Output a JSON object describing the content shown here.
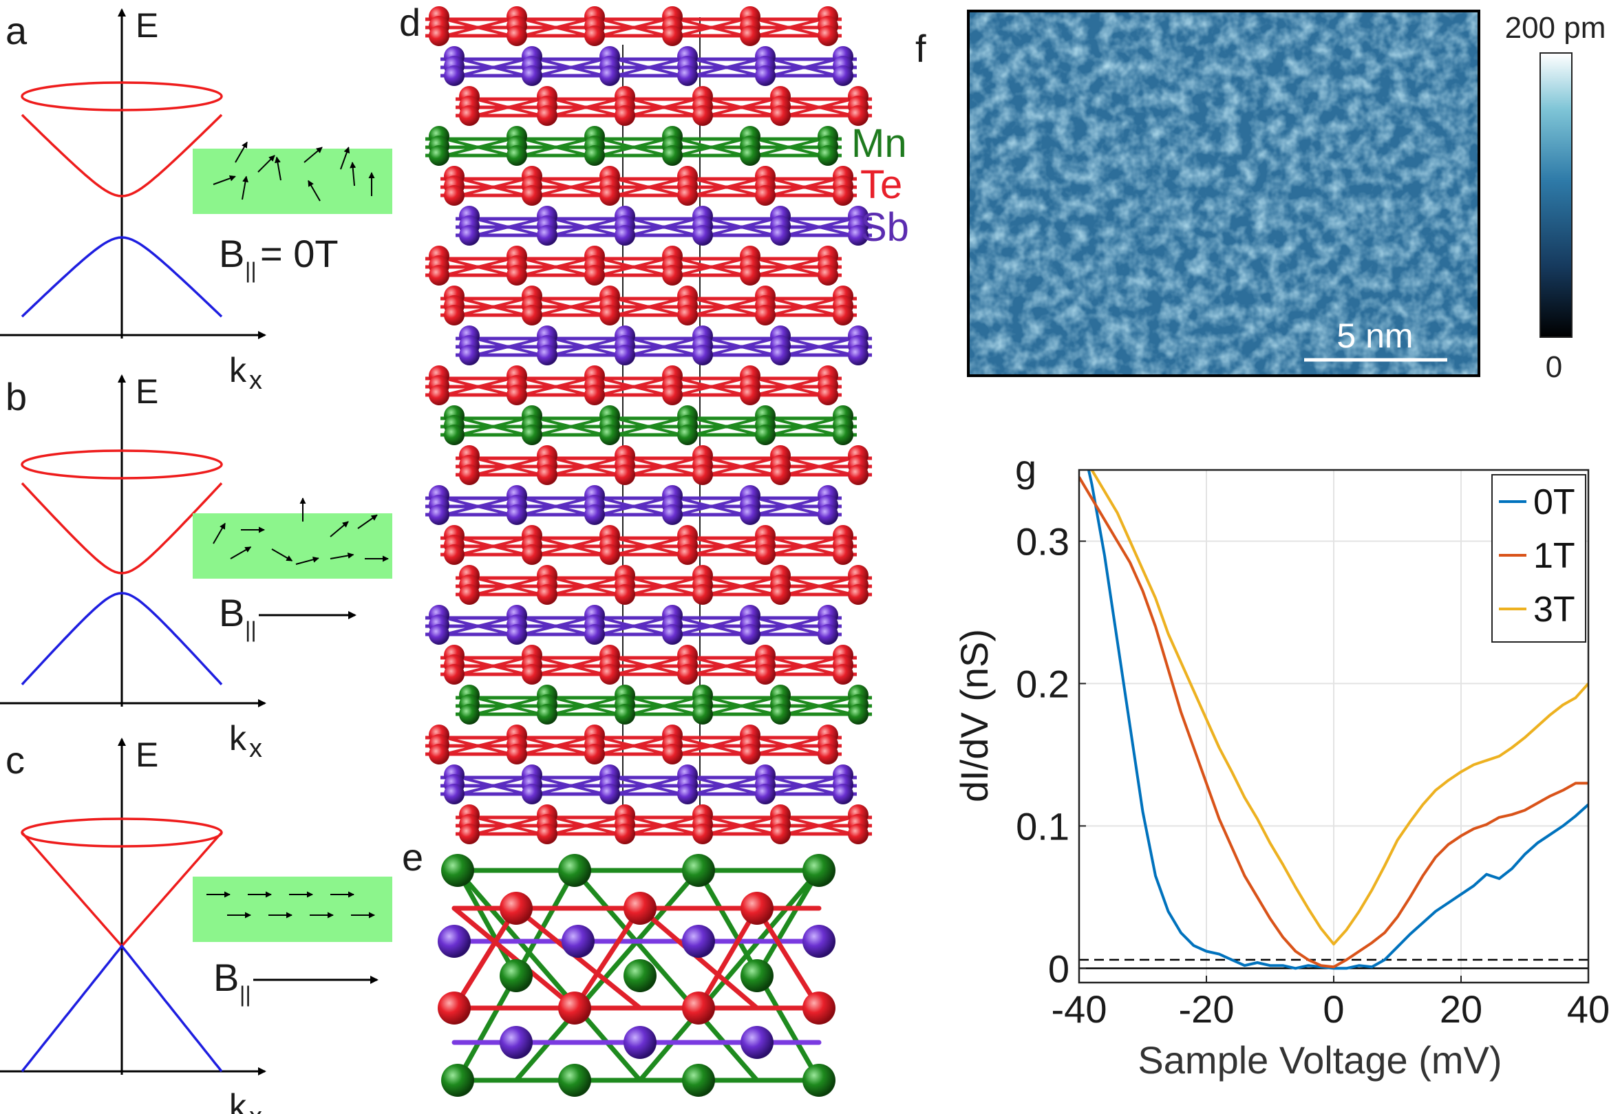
{
  "figure": {
    "panels": {
      "a": {
        "letter": "a",
        "axis_e": "E",
        "axis_k": "k",
        "axis_k_sub": "x",
        "field_label": "B",
        "field_sub": "||",
        "field_value": "= 0T"
      },
      "b": {
        "letter": "b",
        "axis_e": "E",
        "axis_k": "k",
        "axis_k_sub": "x",
        "field_label": "B",
        "field_sub": "||"
      },
      "c": {
        "letter": "c",
        "axis_e": "E",
        "axis_k": "k",
        "axis_k_sub": "x",
        "field_label": "B",
        "field_sub": "||"
      },
      "d": {
        "letter": "d",
        "legend": [
          {
            "name": "Mn",
            "color": "#1e7a1e"
          },
          {
            "name": "Te",
            "color": "#e8202a"
          },
          {
            "name": "Sb",
            "color": "#5b2cb0"
          }
        ]
      },
      "e": {
        "letter": "e"
      },
      "f": {
        "letter": "f",
        "colorbar_max": "200 pm",
        "colorbar_min": "0",
        "scale_bar": "5 nm"
      },
      "g": {
        "letter": "g"
      }
    },
    "colors": {
      "cone": "#ee1c1c",
      "valence": "#1e1ee0",
      "spin_box": "#8cf58c",
      "Mn": "#1e7a1e",
      "Te": "#e8202a",
      "Sb": "#5b2cb0"
    }
  },
  "chart_data": {
    "type": "line",
    "title": "",
    "xlabel": "Sample Voltage (mV)",
    "ylabel": "dI/dV (nS)",
    "xlim": [
      -40,
      40
    ],
    "ylim": [
      -0.01,
      0.35
    ],
    "xticks": [
      "-40",
      "-20",
      "0",
      "20",
      "40"
    ],
    "yticks": [
      "0",
      "0.1",
      "0.2",
      "0.3"
    ],
    "grid": true,
    "legend_position": "top-right",
    "hlines": [
      {
        "y": 0.0,
        "style": "solid"
      },
      {
        "y": 0.006,
        "style": "dashed"
      }
    ],
    "series": [
      {
        "name": "0T",
        "color": "#0072BD",
        "x": [
          -40,
          -38,
          -36,
          -34,
          -32,
          -30,
          -28,
          -26,
          -24,
          -22,
          -20,
          -18,
          -16,
          -14,
          -12,
          -10,
          -8,
          -6,
          -4,
          -2,
          0,
          2,
          4,
          6,
          8,
          10,
          12,
          14,
          16,
          18,
          20,
          22,
          24,
          26,
          28,
          30,
          32,
          34,
          36,
          38,
          40
        ],
        "values": [
          0.38,
          0.34,
          0.29,
          0.23,
          0.17,
          0.11,
          0.065,
          0.04,
          0.025,
          0.016,
          0.012,
          0.01,
          0.006,
          0.002,
          0.004,
          0.002,
          0.002,
          0.0,
          0.002,
          0.001,
          0.0,
          0.0,
          0.002,
          0.001,
          0.006,
          0.015,
          0.024,
          0.032,
          0.04,
          0.046,
          0.052,
          0.058,
          0.066,
          0.063,
          0.07,
          0.08,
          0.088,
          0.094,
          0.1,
          0.107,
          0.115
        ]
      },
      {
        "name": "1T",
        "color": "#D95319",
        "x": [
          -40,
          -38,
          -36,
          -34,
          -32,
          -30,
          -28,
          -26,
          -24,
          -22,
          -20,
          -18,
          -16,
          -14,
          -12,
          -10,
          -8,
          -6,
          -4,
          -2,
          0,
          2,
          4,
          6,
          8,
          10,
          12,
          14,
          16,
          18,
          20,
          22,
          24,
          26,
          28,
          30,
          32,
          34,
          36,
          38,
          40
        ],
        "values": [
          0.345,
          0.33,
          0.315,
          0.3,
          0.285,
          0.265,
          0.24,
          0.21,
          0.18,
          0.155,
          0.13,
          0.105,
          0.085,
          0.065,
          0.05,
          0.035,
          0.022,
          0.012,
          0.006,
          0.002,
          0.001,
          0.006,
          0.012,
          0.018,
          0.025,
          0.036,
          0.05,
          0.065,
          0.078,
          0.087,
          0.093,
          0.098,
          0.101,
          0.106,
          0.108,
          0.111,
          0.116,
          0.121,
          0.125,
          0.13,
          0.13
        ]
      },
      {
        "name": "3T",
        "color": "#EDB120",
        "x": [
          -40,
          -38,
          -36,
          -34,
          -32,
          -30,
          -28,
          -26,
          -24,
          -22,
          -20,
          -18,
          -16,
          -14,
          -12,
          -10,
          -8,
          -6,
          -4,
          -2,
          0,
          2,
          4,
          6,
          8,
          10,
          12,
          14,
          16,
          18,
          20,
          22,
          24,
          26,
          28,
          30,
          32,
          34,
          36,
          38,
          40
        ],
        "values": [
          0.37,
          0.35,
          0.335,
          0.32,
          0.3,
          0.28,
          0.26,
          0.235,
          0.215,
          0.195,
          0.175,
          0.155,
          0.138,
          0.12,
          0.105,
          0.088,
          0.073,
          0.057,
          0.042,
          0.028,
          0.017,
          0.027,
          0.04,
          0.055,
          0.072,
          0.09,
          0.103,
          0.115,
          0.125,
          0.132,
          0.138,
          0.143,
          0.146,
          0.149,
          0.155,
          0.162,
          0.17,
          0.178,
          0.185,
          0.19,
          0.2
        ]
      }
    ]
  }
}
